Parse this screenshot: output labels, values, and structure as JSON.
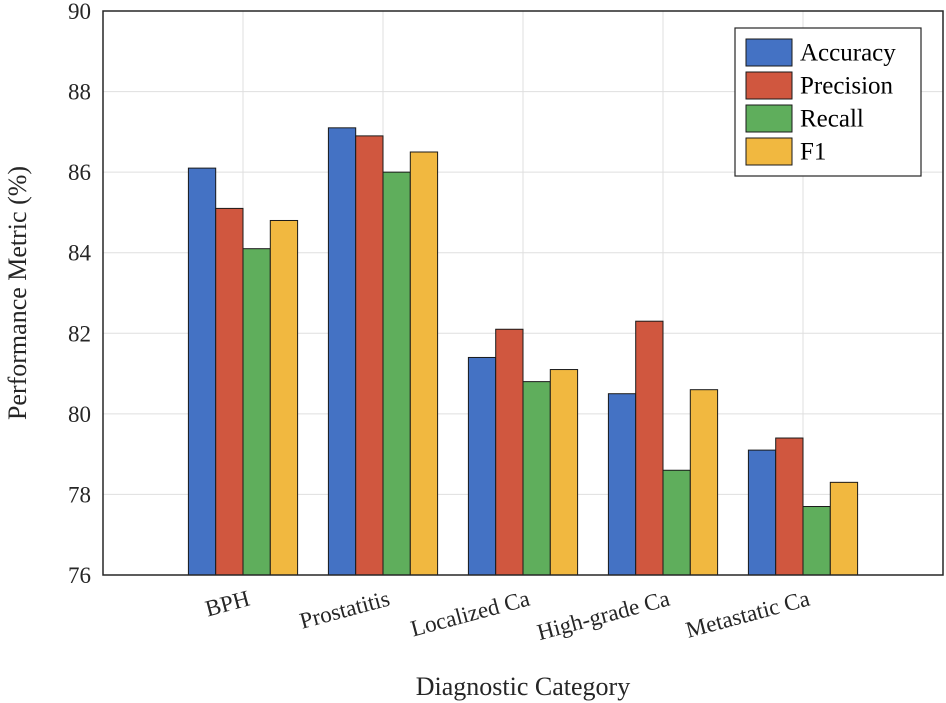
{
  "chart_data": {
    "type": "bar",
    "title": "",
    "xlabel": "Diagnostic Category",
    "ylabel": "Performance Metric (%)",
    "ylim": [
      76,
      90
    ],
    "yticks": [
      76,
      78,
      80,
      82,
      84,
      86,
      88,
      90
    ],
    "grid": true,
    "legend_position": "top-right",
    "categories": [
      "BPH",
      "Prostatitis",
      "Localized Ca",
      "High-grade Ca",
      "Metastatic Ca"
    ],
    "series": [
      {
        "name": "Accuracy",
        "color": "#4472c4",
        "values": [
          86.1,
          87.1,
          81.4,
          80.5,
          79.1
        ]
      },
      {
        "name": "Precision",
        "color": "#d0573f",
        "values": [
          85.1,
          86.9,
          82.1,
          82.3,
          79.4
        ]
      },
      {
        "name": "Recall",
        "color": "#5fae5c",
        "values": [
          84.1,
          86.0,
          80.8,
          78.6,
          77.7
        ]
      },
      {
        "name": "F1",
        "color": "#f1b840",
        "values": [
          84.8,
          86.5,
          81.1,
          80.6,
          78.3
        ]
      }
    ]
  }
}
